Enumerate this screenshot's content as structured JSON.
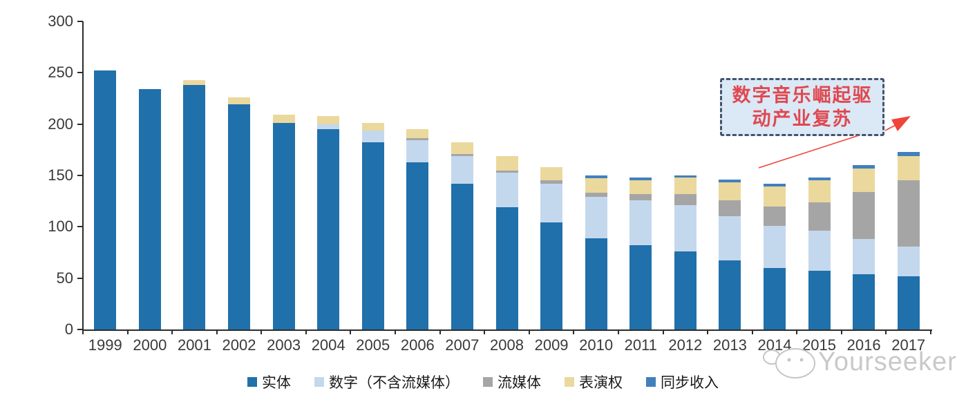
{
  "chart_data": {
    "type": "bar",
    "stacked": true,
    "title": "",
    "xlabel": "",
    "ylabel": "",
    "ylim": [
      0,
      300
    ],
    "yticks": [
      0,
      50,
      100,
      150,
      200,
      250,
      300
    ],
    "grid": false,
    "legend_position": "bottom",
    "axis_color": "#2b2b2b",
    "tick_label_color": "#3a3a3a",
    "categories": [
      "1999",
      "2000",
      "2001",
      "2002",
      "2003",
      "2004",
      "2005",
      "2006",
      "2007",
      "2008",
      "2009",
      "2010",
      "2011",
      "2012",
      "2013",
      "2014",
      "2015",
      "2016",
      "2017"
    ],
    "series": [
      {
        "key": "physical",
        "name": "实体",
        "color": "#2070AB",
        "values": [
          252,
          234,
          238,
          219,
          201,
          195,
          182,
          163,
          142,
          119,
          104,
          89,
          82,
          76,
          67,
          60,
          57,
          54,
          52
        ]
      },
      {
        "key": "digital-excl-streaming",
        "name": "数字（不含流媒体）",
        "color": "#C4D8ED",
        "values": [
          0,
          0,
          0,
          0,
          0,
          5,
          12,
          21,
          27,
          34,
          38,
          40,
          44,
          45,
          43,
          41,
          39,
          34,
          29
        ]
      },
      {
        "key": "streaming",
        "name": "流媒体",
        "color": "#A5A5A5",
        "values": [
          0,
          0,
          0,
          0,
          0,
          0,
          0,
          2,
          2,
          2,
          3,
          4,
          6,
          11,
          16,
          19,
          28,
          46,
          64
        ]
      },
      {
        "key": "performance-rights",
        "name": "表演权",
        "color": "#EBD89D",
        "values": [
          0,
          0,
          5,
          7,
          8,
          8,
          7,
          9,
          11,
          14,
          13,
          14,
          13,
          16,
          17,
          19,
          21,
          23,
          24
        ]
      },
      {
        "key": "sync-revenue",
        "name": "同步收入",
        "color": "#4180BD",
        "values": [
          0,
          0,
          0,
          0,
          0,
          0,
          0,
          0,
          0,
          0,
          0,
          3,
          3,
          2,
          3,
          3,
          3,
          3,
          4
        ]
      }
    ]
  },
  "annotation": {
    "line1": "数字音乐崛起驱",
    "line2": "动产业复苏",
    "text_color": "#E0484F",
    "box_fill": "#DBE8F6",
    "box_border": "#44546A",
    "arrow_color": "#F04438"
  },
  "watermark": {
    "text": "Yourseeker",
    "color": "#c9c9c9"
  }
}
